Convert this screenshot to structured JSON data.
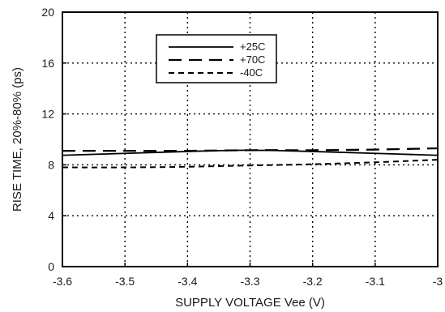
{
  "chart_data": {
    "type": "line",
    "xlabel": "SUPPLY VOLTAGE Vee (V)",
    "ylabel": "RISE TIME, 20%-80% (ps)",
    "xlim": [
      -3.6,
      -3.0
    ],
    "ylim": [
      0,
      20
    ],
    "x_ticks": [
      -3.6,
      -3.5,
      -3.4,
      -3.3,
      -3.2,
      -3.1,
      -3.0
    ],
    "x_tick_labels": [
      "-3.6",
      "-3.5",
      "-3.4",
      "-3.3",
      "-3.2",
      "-3.1",
      "-3"
    ],
    "y_ticks": [
      0,
      4,
      8,
      12,
      16,
      20
    ],
    "y_tick_labels": [
      "0",
      "4",
      "8",
      "12",
      "16",
      "20"
    ],
    "grid": true,
    "legend_position": "top-center",
    "x": [
      -3.6,
      -3.5,
      -3.4,
      -3.3,
      -3.2,
      -3.1,
      -3.0
    ],
    "series": [
      {
        "name": "+25C",
        "style": "solid",
        "values": [
          8.75,
          8.9,
          9.05,
          9.15,
          9.05,
          8.9,
          8.75
        ]
      },
      {
        "name": "+70C",
        "style": "long-dash",
        "values": [
          9.1,
          9.1,
          9.1,
          9.15,
          9.15,
          9.2,
          9.3
        ]
      },
      {
        "name": "-40C",
        "style": "short-dash",
        "values": [
          7.8,
          7.8,
          7.85,
          7.95,
          8.05,
          8.2,
          8.4
        ]
      }
    ]
  }
}
